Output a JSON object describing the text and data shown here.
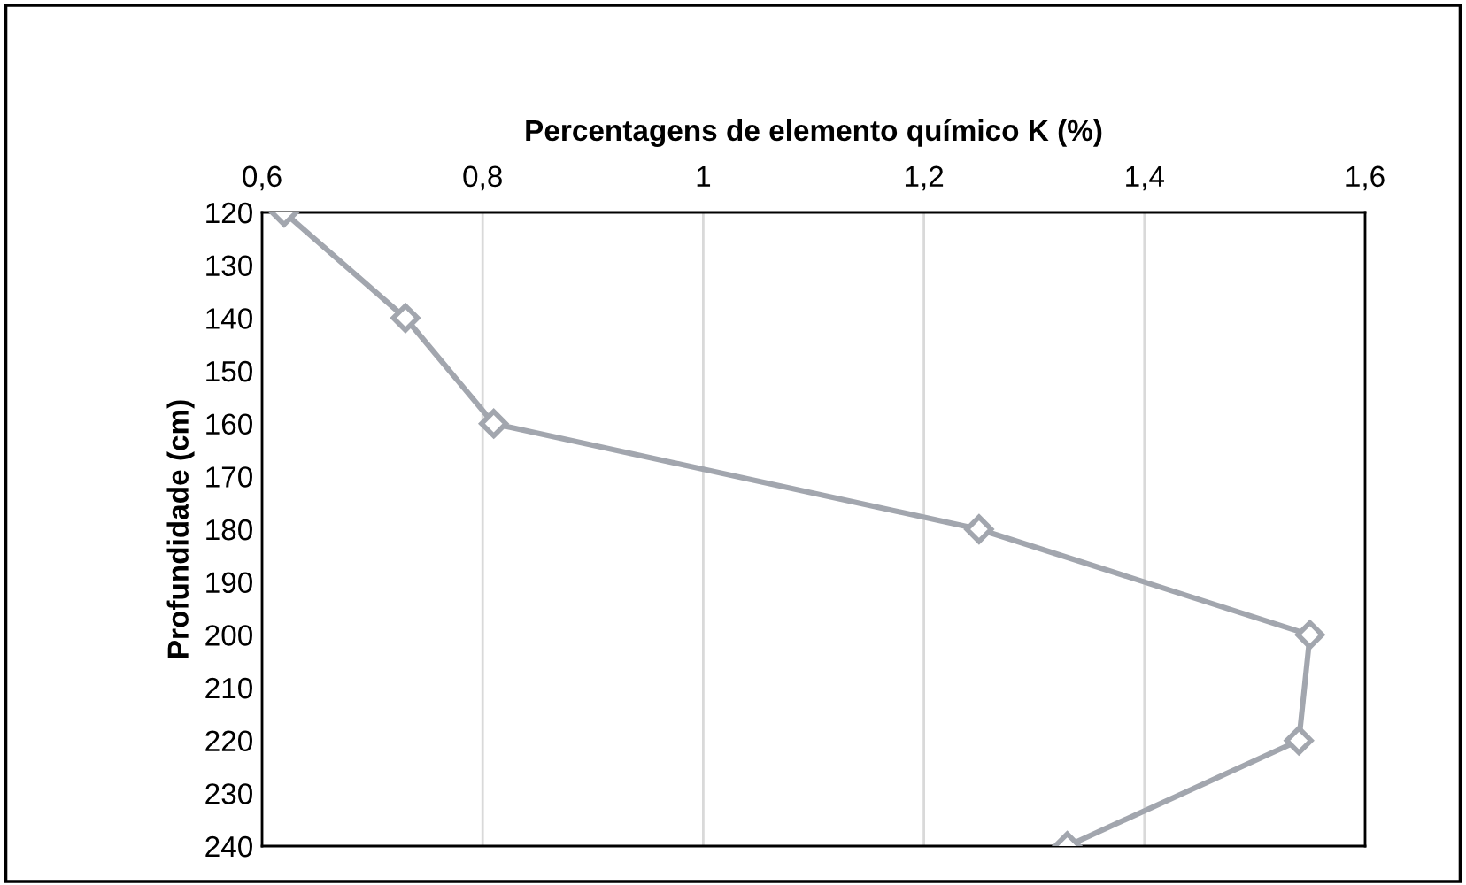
{
  "chart_data": {
    "type": "line",
    "xlabel": "Percentagens de elemento químico K (%)",
    "ylabel": "Profundidade (cm)",
    "series": [
      {
        "color": "#a2a6ae",
        "x": [
          0.62,
          0.73,
          0.81,
          1.25,
          1.55,
          1.54,
          1.33
        ],
        "values": [
          120,
          140,
          160,
          180,
          200,
          220,
          240
        ]
      }
    ],
    "xlim": [
      0.6,
      1.6
    ],
    "xticks": [
      {
        "value": 0.6,
        "label": "0,6"
      },
      {
        "value": 0.8,
        "label": "0,8"
      },
      {
        "value": 1,
        "label": "1"
      },
      {
        "value": 1.2,
        "label": "1,2"
      },
      {
        "value": 1.4,
        "label": "1,4"
      },
      {
        "value": 1.6,
        "label": "1,6"
      }
    ],
    "ylim": [
      240,
      120
    ],
    "yticks": [
      120,
      130,
      140,
      150,
      160,
      170,
      180,
      190,
      200,
      210,
      220,
      230,
      240
    ],
    "grid": "x",
    "marker": "diamond",
    "line_style": "solid"
  }
}
